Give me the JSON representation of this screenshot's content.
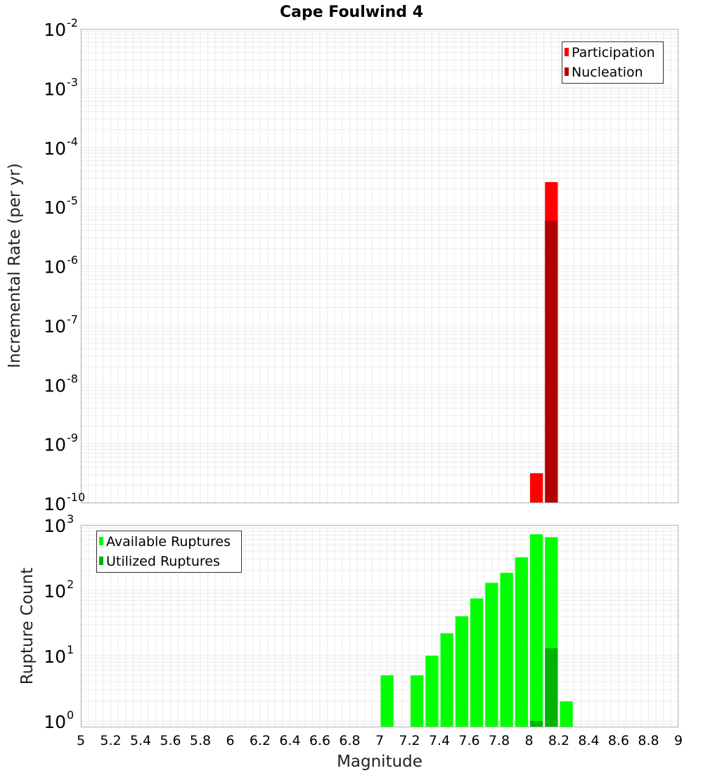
{
  "chart_data": [
    {
      "type": "bar",
      "panel": "top",
      "title": "Cape Foulwind 4",
      "xlabel": "Magnitude",
      "ylabel": "Incremental Rate (per yr)",
      "yscale": "log",
      "xlim": [
        5,
        9
      ],
      "ylim": [
        1e-10,
        0.01
      ],
      "bin_width": 0.1,
      "grid": true,
      "legend_position": "top-right",
      "series": [
        {
          "name": "Participation",
          "color": "#ff0000",
          "points": [
            {
              "x": 8.05,
              "y": 3.2e-10
            },
            {
              "x": 8.15,
              "y": 2.6e-05
            }
          ]
        },
        {
          "name": "Nucleation",
          "color": "#b30000",
          "points": [
            {
              "x": 8.15,
              "y": 5.8e-06
            }
          ]
        }
      ],
      "ytick_bases": [
        "10",
        "10",
        "10",
        "10",
        "10",
        "10",
        "10",
        "10",
        "10"
      ],
      "ytick_exponents": [
        "-2",
        "-3",
        "-4",
        "-5",
        "-6",
        "-7",
        "-8",
        "-9",
        "-10"
      ]
    },
    {
      "type": "bar",
      "panel": "bottom",
      "xlabel": "Magnitude",
      "ylabel": "Rupture Count",
      "yscale": "log",
      "xlim": [
        5,
        9
      ],
      "ylim": [
        0.8,
        1000
      ],
      "bin_width": 0.1,
      "grid": true,
      "legend_position": "top-left",
      "series": [
        {
          "name": "Available Ruptures",
          "color": "#00ff00",
          "points": [
            {
              "x": 7.05,
              "y": 5
            },
            {
              "x": 7.25,
              "y": 5
            },
            {
              "x": 7.35,
              "y": 10
            },
            {
              "x": 7.45,
              "y": 22
            },
            {
              "x": 7.55,
              "y": 40
            },
            {
              "x": 7.65,
              "y": 75
            },
            {
              "x": 7.75,
              "y": 130
            },
            {
              "x": 7.85,
              "y": 185
            },
            {
              "x": 7.95,
              "y": 320
            },
            {
              "x": 8.05,
              "y": 720
            },
            {
              "x": 8.15,
              "y": 650
            },
            {
              "x": 8.25,
              "y": 2
            }
          ]
        },
        {
          "name": "Utilized Ruptures",
          "color": "#00b300",
          "points": [
            {
              "x": 8.05,
              "y": 1
            },
            {
              "x": 8.15,
              "y": 13
            }
          ]
        }
      ],
      "ytick_bases": [
        "10",
        "10",
        "10",
        "10"
      ],
      "ytick_exponents": [
        "3",
        "2",
        "1",
        "0"
      ]
    }
  ],
  "x_tick_labels": [
    "5",
    "5.2",
    "5.4",
    "5.6",
    "5.8",
    "6",
    "6.2",
    "6.4",
    "6.6",
    "6.8",
    "7",
    "7.2",
    "7.4",
    "7.6",
    "7.8",
    "8",
    "8.2",
    "8.4",
    "8.6",
    "8.8",
    "9"
  ],
  "colors": {
    "gridline": "#ebebeb",
    "plot_border": "#b4b4b4"
  }
}
